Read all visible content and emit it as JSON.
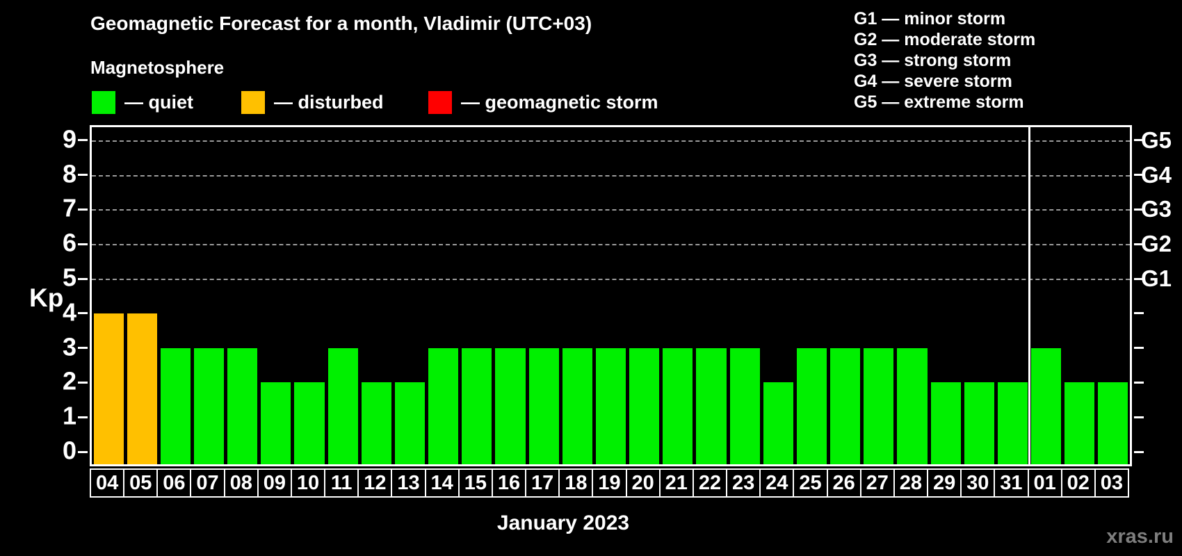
{
  "header": {
    "title": "Geomagnetic Forecast for a month, Vladimir (UTC+03)",
    "subtitle": "Magnetosphere"
  },
  "status_legend": [
    {
      "name": "quiet",
      "label": "— quiet",
      "color": "#00f000"
    },
    {
      "name": "disturbed",
      "label": "— disturbed",
      "color": "#ffc000"
    },
    {
      "name": "storm",
      "label": "— geomagnetic storm",
      "color": "#ff0000"
    }
  ],
  "g_scale_legend": [
    "G1 — minor storm",
    "G2 — moderate storm",
    "G3 — strong storm",
    "G4 — severe storm",
    "G5 — extreme storm"
  ],
  "chart_data": {
    "type": "bar",
    "title": "Geomagnetic Forecast for a month, Vladimir (UTC+03)",
    "xlabel": "January 2023",
    "ylabel": "Kp",
    "ylim": [
      0,
      9
    ],
    "y_tick_labels": [
      "0",
      "1",
      "2",
      "3",
      "4",
      "5",
      "6",
      "7",
      "8",
      "9"
    ],
    "gridlines_at_kp": [
      5,
      6,
      7,
      8,
      9
    ],
    "right_axis_labels": [
      {
        "label": "G5",
        "kp": 9
      },
      {
        "label": "G4",
        "kp": 8
      },
      {
        "label": "G3",
        "kp": 7
      },
      {
        "label": "G2",
        "kp": 6
      },
      {
        "label": "G1",
        "kp": 5
      }
    ],
    "categories": [
      "04",
      "05",
      "06",
      "07",
      "08",
      "09",
      "10",
      "11",
      "12",
      "13",
      "14",
      "15",
      "16",
      "17",
      "18",
      "19",
      "20",
      "21",
      "22",
      "23",
      "24",
      "25",
      "26",
      "27",
      "28",
      "29",
      "30",
      "31",
      "01",
      "02",
      "03"
    ],
    "values": [
      4,
      4,
      3,
      3,
      3,
      2,
      2,
      3,
      2,
      2,
      3,
      3,
      3,
      3,
      3,
      3,
      3,
      3,
      3,
      3,
      2,
      3,
      3,
      3,
      3,
      2,
      2,
      2,
      3,
      2,
      2
    ],
    "statuses": [
      "disturbed",
      "disturbed",
      "quiet",
      "quiet",
      "quiet",
      "quiet",
      "quiet",
      "quiet",
      "quiet",
      "quiet",
      "quiet",
      "quiet",
      "quiet",
      "quiet",
      "quiet",
      "quiet",
      "quiet",
      "quiet",
      "quiet",
      "quiet",
      "quiet",
      "quiet",
      "quiet",
      "quiet",
      "quiet",
      "quiet",
      "quiet",
      "quiet",
      "quiet",
      "quiet",
      "quiet"
    ],
    "month_separator_after_index": 27,
    "legend_position": "top",
    "colors": {
      "quiet": "#00f000",
      "disturbed": "#ffc000",
      "storm": "#ff0000",
      "axis": "#ffffff",
      "grid": "#9c9c9c",
      "background": "#000000"
    }
  },
  "watermark": "xras.ru"
}
